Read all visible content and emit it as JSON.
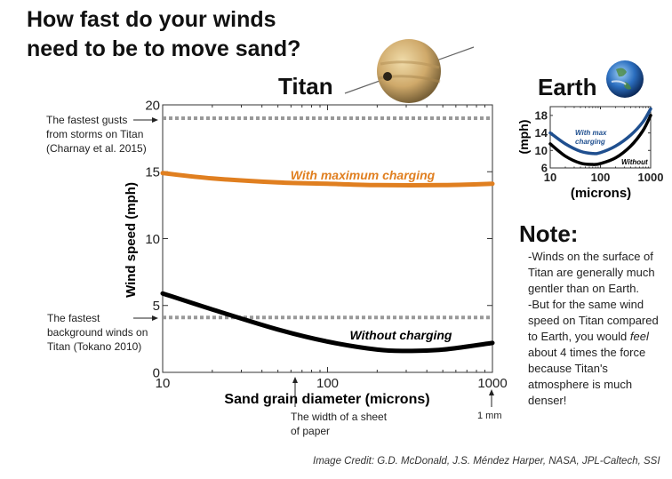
{
  "title": {
    "line1": "How fast do your winds",
    "line2": "need to be to move sand?"
  },
  "labels": {
    "titan": "Titan",
    "earth": "Earth"
  },
  "annotations": {
    "gusts": [
      "The fastest gusts",
      "from storms on Titan",
      "(Charnay et al. 2015)"
    ],
    "background": [
      "The fastest",
      "background winds on",
      "Titan (Tokano 2010)"
    ],
    "paper": [
      "The width of a sheet",
      "of paper"
    ],
    "mm": "1 mm"
  },
  "note": {
    "heading": "Note:",
    "line1": "-Winds on the surface of Titan are generally much gentler than on Earth.",
    "line2_pre": "-But for the same wind speed on Titan compared to Earth, you would ",
    "line2_em": "feel",
    "line2_post": " about 4 times the force because Titan's atmosphere is much denser!"
  },
  "credit": "Image Credit: G.D. McDonald, J.S. Méndez Harper, NASA, JPL-Caltech, SSI",
  "colors": {
    "orange": "#e07f20",
    "black": "#000000",
    "blue": "#1f4f8f",
    "dashed": "#999999"
  },
  "chart_data": [
    {
      "type": "line",
      "name": "Titan",
      "xlabel": "Sand grain diameter (microns)",
      "ylabel": "Wind speed (mph)",
      "xscale": "log",
      "xlim": [
        10,
        1000
      ],
      "ylim": [
        0,
        20
      ],
      "xticks": [
        10,
        100,
        1000
      ],
      "yticks": [
        0,
        5,
        10,
        15,
        20
      ],
      "series": [
        {
          "name": "With maximum charging",
          "color": "#e07f20",
          "x": [
            10,
            20,
            50,
            100,
            200,
            500,
            1000
          ],
          "y": [
            14.9,
            14.5,
            14.2,
            14.1,
            14.0,
            14.0,
            14.1
          ]
        },
        {
          "name": "Without charging",
          "color": "#000000",
          "x": [
            10,
            20,
            50,
            100,
            200,
            300,
            500,
            1000
          ],
          "y": [
            5.9,
            4.7,
            3.2,
            2.3,
            1.7,
            1.6,
            1.7,
            2.2
          ]
        }
      ],
      "reference_lines": [
        {
          "y": 19,
          "style": "dashed"
        },
        {
          "y": 4.1,
          "style": "dashed"
        }
      ]
    },
    {
      "type": "line",
      "name": "Earth",
      "xlabel": "(microns)",
      "ylabel": "(mph)",
      "xscale": "log",
      "xlim": [
        10,
        1000
      ],
      "ylim": [
        6,
        20
      ],
      "xticks": [
        10,
        100,
        1000
      ],
      "yticks": [
        6,
        10,
        14,
        18
      ],
      "series": [
        {
          "name": "With max charging",
          "color": "#1f4f8f",
          "x": [
            10,
            20,
            40,
            70,
            100,
            200,
            400,
            700,
            1000
          ],
          "y": [
            14,
            11.5,
            9.8,
            9.3,
            9.5,
            11,
            13.5,
            16.5,
            19.5
          ]
        },
        {
          "name": "Without",
          "color": "#000000",
          "x": [
            10,
            20,
            40,
            70,
            100,
            200,
            400,
            700,
            1000
          ],
          "y": [
            11.5,
            8.7,
            7.1,
            6.8,
            7.0,
            8.3,
            11,
            14.5,
            18
          ]
        }
      ]
    }
  ]
}
